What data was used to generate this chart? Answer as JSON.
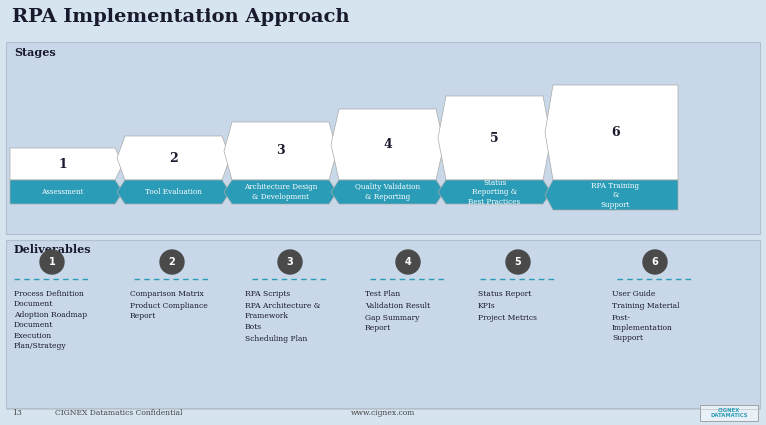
{
  "title": "RPA Implementation Approach",
  "bg_color": "#d6e4f0",
  "stages_label": "Stages",
  "deliverables_label": "Deliverables",
  "stages": [
    {
      "num": "1",
      "label": "Assessment"
    },
    {
      "num": "2",
      "label": "Tool Evaluation"
    },
    {
      "num": "3",
      "label": "Architecture Design\n& Development"
    },
    {
      "num": "4",
      "label": "Quality Validation\n& Reporting"
    },
    {
      "num": "5",
      "label": "Status\nReporting &\nBest Practices"
    },
    {
      "num": "6",
      "label": "RPA Training\n&\nSupport"
    }
  ],
  "deliverables": [
    [
      "Process Definition\nDocument",
      "Adoption Roadmap\nDocument",
      "Execution\nPlan/Strategy"
    ],
    [
      "Comparison Matrix",
      "Product Compliance\nReport"
    ],
    [
      "RPA Scripts",
      "RPA Architecture &\nFramework",
      "Bots",
      "Scheduling Plan"
    ],
    [
      "Test Plan",
      "Validation Result",
      "Gap Summary\nReport"
    ],
    [
      "Status Report",
      "KPIs",
      "Project Metrics"
    ],
    [
      "User Guide",
      "Training Material",
      "Post-\nImplementation\nSupport"
    ]
  ],
  "stage_white_color": "#ffffff",
  "stage_teal_color": "#2a9cb7",
  "stage_light_blue": "#bdd4e8",
  "stage_border": "#aaaaaa",
  "circle_color": "#4a4a4a",
  "title_color": "#1a1a2e",
  "section_label_color": "#1a1a2e",
  "deliverable_text_color": "#1a1a2e",
  "dashed_line_color": "#2a9cb7",
  "footer_color": "#444444",
  "section_bg": "#c8d8e8"
}
